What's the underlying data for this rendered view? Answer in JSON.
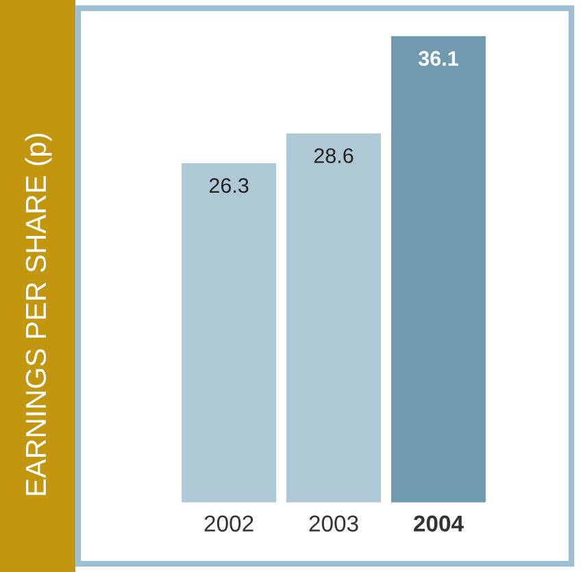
{
  "chart_data": {
    "type": "bar",
    "annotations": [
      "EARNINGS PER SHARE (p)"
    ],
    "categories": [
      "2002",
      "2003",
      "2004"
    ],
    "values": [
      26.3,
      28.6,
      36.1
    ],
    "colors": [
      "#afc8d5",
      "#afc8d5",
      "#6f9ab0"
    ],
    "data_labels": true
  }
}
